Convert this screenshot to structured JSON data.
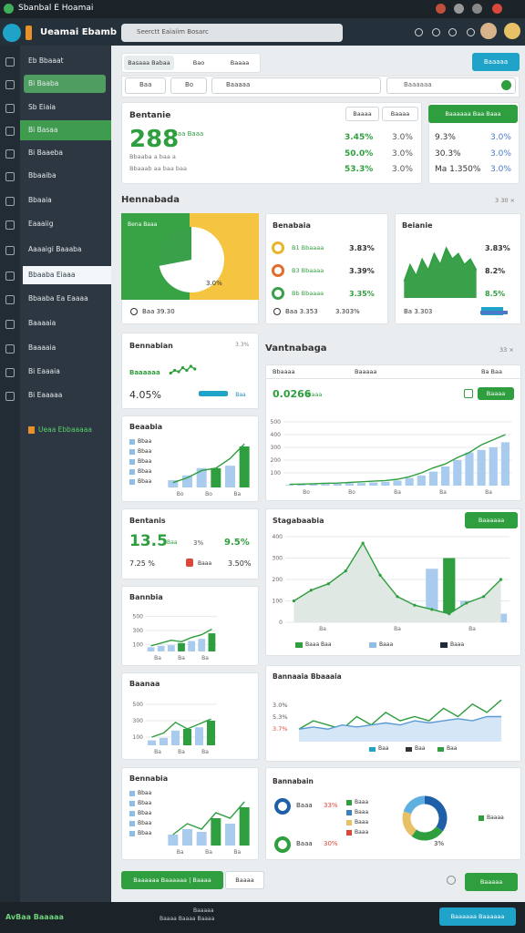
{
  "browser": {
    "title": "Sbanbal E Hoamai"
  },
  "header": {
    "app": "Ueamai Ebamb",
    "search": "Seerctt Eaiaiim Bosarc"
  },
  "sidebar": {
    "items": [
      "Eb Bbaaat",
      "Bi Baaba",
      "Sb Eiaia",
      "Bi Basaa",
      "Bi Baaeba",
      "Bbaaiba",
      "Bbaaia",
      "Eaaaiig",
      "Aaaaigi Baaaba",
      "Bbaaba Eiaaa",
      "Bbaaba Ea Eaaaa",
      "Baaaaia",
      "Baaaaia",
      "Bi Eaaaia",
      "Bi Eaaaaa"
    ],
    "cta": "Ueaa Ebbaaaaa"
  },
  "toolbar": {
    "tabs": [
      "Basaaa Babaa",
      "Bao",
      "Baaaa"
    ],
    "action": "Baaaaa",
    "filters": [
      "Baa",
      "Bo",
      "Baaaaa"
    ],
    "search": "Baaaaaa"
  },
  "summary": {
    "title": "Bentanie",
    "big": "288",
    "unit": "Baa Baaa",
    "rows": [
      "Bbaaba a baa a",
      "Bbaaab aa baa baa"
    ],
    "buttons": [
      "Baaaa",
      "Baaaa"
    ],
    "cols": [
      [
        "3.45%",
        "3.0%"
      ],
      [
        "50.0%",
        "3.0%"
      ],
      [
        "53.3%",
        "3.0%"
      ]
    ]
  },
  "summary_side": {
    "button": "Baaaaaa Baa Baaa",
    "rows": [
      [
        "9.3%",
        "3.0%"
      ],
      [
        "30.3%",
        "3.0%"
      ],
      [
        "Ma 1.350%",
        "3.0%"
      ]
    ]
  },
  "section": {
    "title": "Hennabada",
    "note": "3 30 ×"
  },
  "pie_card": {
    "label": "Bena Baaa",
    "pct": "3.0%",
    "footer": "Baa 39.30",
    "values": [
      72,
      28
    ]
  },
  "list_card": {
    "title": "Benabaia",
    "items": [
      {
        "name": "B1 Bbaaaa",
        "value": "3.83%"
      },
      {
        "name": "B3 Bbaaaa",
        "value": "3.39%"
      },
      {
        "name": "Bb Bbaaaa",
        "value": "3.35%"
      }
    ],
    "footer": "Baa 3.353",
    "footer_value": "3.303%"
  },
  "area_card": {
    "title": "Beianie",
    "items": [
      "3.83%",
      "8.2%",
      "8.5%"
    ],
    "footer": "Ba 3.303",
    "ylim": [
      0,
      10
    ],
    "line": [
      3,
      6,
      4,
      7,
      5,
      8,
      6,
      9,
      7,
      8,
      6,
      7,
      5
    ]
  },
  "kpi_card": {
    "title": "Bennabian",
    "note": "3.3%",
    "name": "Baaaaaa",
    "pct": "4.05%",
    "btn": "Baa",
    "ylim": [
      0,
      10
    ],
    "line": [
      3,
      5,
      4,
      7,
      5,
      8,
      6
    ]
  },
  "chart1": {
    "title": "Beaabia",
    "legend": [
      "Bbaa",
      "Bbaa",
      "Bbaa",
      "Bbaa",
      "Bbaa"
    ],
    "xlabels": [
      "Bo",
      "Bo",
      "Ba"
    ],
    "ylim": [
      0,
      10
    ],
    "bars": [
      1.5,
      2.5,
      4,
      4,
      4.5,
      8.5
    ],
    "line": [
      1,
      2,
      3.5,
      4,
      6,
      9
    ]
  },
  "kpi2": {
    "title": "Bentanis",
    "big": "13.5",
    "unit": "Baa",
    "pct1": "3%",
    "pct2": "9.5%",
    "sub": "7.25 %",
    "sub2": "Baaa",
    "sub3": "3.50%"
  },
  "chart2": {
    "title": "Bannbia",
    "xlabels": [
      "Ba",
      "Ba",
      "Ba"
    ],
    "ylim": [
      0,
      600
    ],
    "yticks": [
      100,
      300,
      500
    ],
    "bars": [
      60,
      80,
      90,
      120,
      150,
      180,
      260
    ],
    "line": [
      80,
      120,
      160,
      140,
      200,
      240,
      320
    ]
  },
  "chart3": {
    "title": "Baanaa",
    "xlabels": [
      "Ba",
      "Ba",
      "Ba"
    ],
    "ylim": [
      0,
      600
    ],
    "yticks": [
      100,
      300,
      500
    ],
    "bars": [
      60,
      90,
      180,
      200,
      220,
      300
    ],
    "line": [
      100,
      150,
      280,
      200,
      260,
      320
    ]
  },
  "chart4": {
    "title": "Bennabia",
    "legend": [
      "Bbaa",
      "Bbaa",
      "Bbaa",
      "Bbaa",
      "Bbaa"
    ],
    "xlabels": [
      "Ba",
      "Ba",
      "Ba"
    ],
    "ylim": [
      0,
      10
    ],
    "bars": [
      2,
      3,
      2.5,
      5,
      4,
      7
    ],
    "line": [
      2,
      4,
      3,
      6,
      5,
      8
    ]
  },
  "right_title": "Vantnabaga",
  "right_note": "33 ×",
  "table_card": {
    "headers": [
      "Bbaaaa",
      "Baaaaa",
      "Ba Baa"
    ],
    "big": "0.0266",
    "unit": "Baaa",
    "btn": "Baaaa",
    "xlabels": [
      "Bo",
      "Bo",
      "Ba",
      "Ba",
      "Ba"
    ],
    "ylim": [
      0,
      600
    ],
    "yticks": [
      100,
      200,
      300,
      400,
      500
    ],
    "bars": [
      5,
      8,
      10,
      12,
      15,
      18,
      20,
      25,
      30,
      40,
      60,
      80,
      110,
      150,
      200,
      260,
      280,
      300,
      340
    ],
    "line": [
      10,
      12,
      15,
      18,
      20,
      25,
      30,
      35,
      40,
      50,
      70,
      100,
      140,
      170,
      220,
      260,
      320,
      360,
      400
    ]
  },
  "mix_card": {
    "title": "Stagabaabia",
    "btn": "Baaaaaa",
    "legend": [
      "Baaa Baa",
      "Baaa",
      "Baaa"
    ],
    "xlabels": [
      "Ba",
      "Ba",
      "Ba"
    ],
    "ylim": [
      0,
      400
    ],
    "yticks": [
      0,
      100,
      200,
      300,
      400
    ],
    "bars": [
      null,
      null,
      null,
      null,
      null,
      null,
      null,
      60,
      250,
      300,
      100,
      60,
      40
    ],
    "line": [
      100,
      150,
      180,
      240,
      370,
      220,
      120,
      80,
      60,
      40,
      90,
      120,
      200
    ]
  },
  "line_card": {
    "title": "Bannaaia Bbaaaia",
    "ylabels": [
      "3.0%",
      "5.3%",
      "3.7%"
    ],
    "legend": [
      "Baa",
      "Baa",
      "Baa"
    ],
    "ylim": [
      0,
      12
    ],
    "line": [
      3,
      5,
      4,
      3,
      6,
      4,
      7,
      5,
      6,
      5,
      8,
      6,
      9,
      7,
      10
    ],
    "line2": [
      3,
      3.5,
      3,
      4,
      3.5,
      4,
      4.5,
      4,
      5,
      4.5,
      5,
      5.5,
      5,
      6,
      6
    ]
  },
  "donut_card": {
    "title": "Bannabain",
    "rows": [
      {
        "name": "Baaa",
        "value": "33%"
      },
      {
        "name": "Baaa",
        "value": "30%"
      }
    ],
    "legend": [
      "Baaa",
      "Baaa",
      "Baaa",
      "Baaa"
    ],
    "note": "Baaaa",
    "pct": "3%",
    "values": [
      35,
      25,
      20,
      20
    ]
  },
  "actions": {
    "primary": "Baaaaaa Baaaaaa | Baaaa",
    "secondary": "Baaaa",
    "right": "Baaaaa"
  },
  "footer": {
    "brand": "AvBaa Baaaaa",
    "center": [
      "Baaaaa",
      "Baaaa Baaaa Baaaa"
    ],
    "button": "Baaaaaa Baaaaaa"
  }
}
